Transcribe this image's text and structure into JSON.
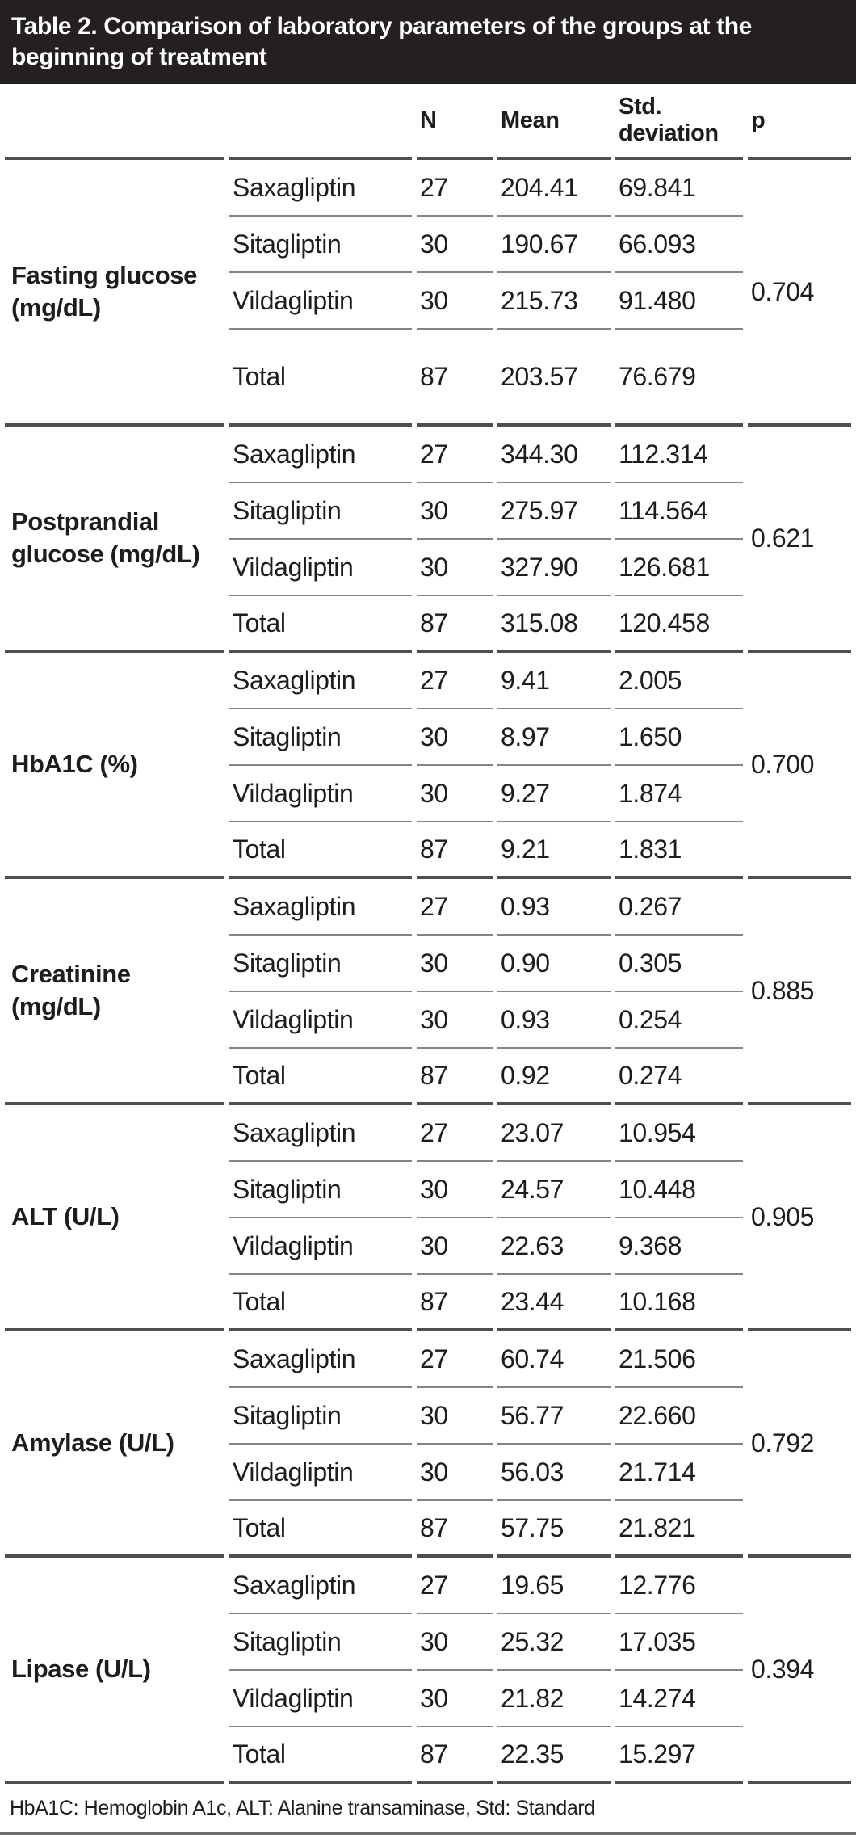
{
  "title": "Table 2. Comparison of laboratory parameters of the groups at the beginning of treatment",
  "columns": {
    "parameter": "",
    "group": "",
    "n": "N",
    "mean": "Mean",
    "std": "Std. deviation",
    "p": "p"
  },
  "groups": [
    {
      "parameter": "Fasting glucose (mg/dL)",
      "p": "0.704",
      "rows": [
        {
          "group": "Saxagliptin",
          "n": "27",
          "mean": "204.41",
          "std": "69.841"
        },
        {
          "group": "Sitagliptin",
          "n": "30",
          "mean": "190.67",
          "std": "66.093"
        },
        {
          "group": "Vildagliptin",
          "n": "30",
          "mean": "215.73",
          "std": "91.480"
        },
        {
          "group": "Total",
          "n": "87",
          "mean": "203.57",
          "std": "76.679"
        }
      ]
    },
    {
      "parameter": "Postprandial glucose (mg/dL)",
      "p": "0.621",
      "rows": [
        {
          "group": "Saxagliptin",
          "n": "27",
          "mean": "344.30",
          "std": "112.314"
        },
        {
          "group": "Sitagliptin",
          "n": "30",
          "mean": "275.97",
          "std": "114.564"
        },
        {
          "group": "Vildagliptin",
          "n": "30",
          "mean": "327.90",
          "std": "126.681"
        },
        {
          "group": "Total",
          "n": "87",
          "mean": "315.08",
          "std": "120.458"
        }
      ]
    },
    {
      "parameter": "HbA1C (%)",
      "p": "0.700",
      "rows": [
        {
          "group": "Saxagliptin",
          "n": "27",
          "mean": "9.41",
          "std": "2.005"
        },
        {
          "group": "Sitagliptin",
          "n": "30",
          "mean": "8.97",
          "std": "1.650"
        },
        {
          "group": "Vildagliptin",
          "n": "30",
          "mean": "9.27",
          "std": "1.874"
        },
        {
          "group": "Total",
          "n": "87",
          "mean": "9.21",
          "std": "1.831"
        }
      ]
    },
    {
      "parameter": "Creatinine (mg/dL)",
      "p": "0.885",
      "rows": [
        {
          "group": "Saxagliptin",
          "n": "27",
          "mean": "0.93",
          "std": "0.267"
        },
        {
          "group": "Sitagliptin",
          "n": "30",
          "mean": "0.90",
          "std": "0.305"
        },
        {
          "group": "Vildagliptin",
          "n": "30",
          "mean": "0.93",
          "std": "0.254"
        },
        {
          "group": "Total",
          "n": "87",
          "mean": "0.92",
          "std": "0.274"
        }
      ]
    },
    {
      "parameter": "ALT (U/L)",
      "p": "0.905",
      "rows": [
        {
          "group": "Saxagliptin",
          "n": "27",
          "mean": "23.07",
          "std": "10.954"
        },
        {
          "group": "Sitagliptin",
          "n": "30",
          "mean": "24.57",
          "std": "10.448"
        },
        {
          "group": "Vildagliptin",
          "n": "30",
          "mean": "22.63",
          "std": "9.368"
        },
        {
          "group": "Total",
          "n": "87",
          "mean": "23.44",
          "std": "10.168"
        }
      ]
    },
    {
      "parameter": "Amylase (U/L)",
      "p": "0.792",
      "rows": [
        {
          "group": "Saxagliptin",
          "n": "27",
          "mean": "60.74",
          "std": "21.506"
        },
        {
          "group": "Sitagliptin",
          "n": "30",
          "mean": "56.77",
          "std": "22.660"
        },
        {
          "group": "Vildagliptin",
          "n": "30",
          "mean": "56.03",
          "std": "21.714"
        },
        {
          "group": "Total",
          "n": "87",
          "mean": "57.75",
          "std": "21.821"
        }
      ]
    },
    {
      "parameter": "Lipase (U/L)",
      "p": "0.394",
      "rows": [
        {
          "group": "Saxagliptin",
          "n": "27",
          "mean": "19.65",
          "std": "12.776"
        },
        {
          "group": "Sitagliptin",
          "n": "30",
          "mean": "25.32",
          "std": "17.035"
        },
        {
          "group": "Vildagliptin",
          "n": "30",
          "mean": "21.82",
          "std": "14.274"
        },
        {
          "group": "Total",
          "n": "87",
          "mean": "22.35",
          "std": "15.297"
        }
      ]
    }
  ],
  "footnote": "HbA1C: Hemoglobin A1c, ALT: Alanine transaminase, Std: Standard",
  "colors": {
    "title_bar_bg": "#241f21",
    "title_text": "#ffffff",
    "group_separator": "#4e4e50",
    "row_divider": "#838486",
    "footnote_rule": "#6d6e71"
  }
}
